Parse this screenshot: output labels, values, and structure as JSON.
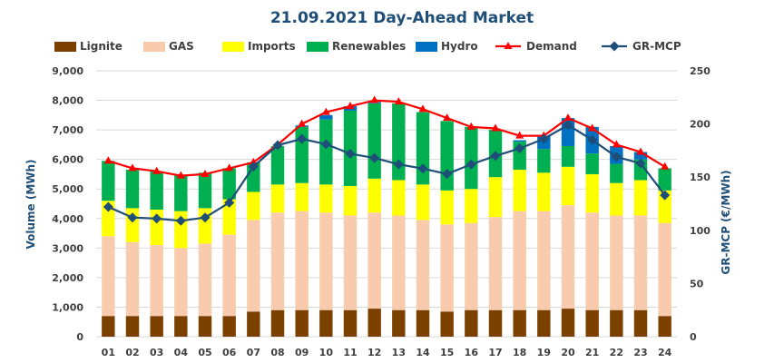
{
  "chart_data": {
    "type": "bar",
    "title": "21.09.2021  Day-Ahead Market",
    "xlabel": "",
    "ylabel": "Volume (MWh)",
    "y2label": "GR-MCP (€/MWh)",
    "ylim": [
      0,
      9000
    ],
    "y2lim": [
      0,
      250
    ],
    "yticks": [
      "0",
      "1,000",
      "2,000",
      "3,000",
      "4,000",
      "5,000",
      "6,000",
      "7,000",
      "8,000",
      "9,000"
    ],
    "y2ticks": [
      "0",
      "50",
      "100",
      "150",
      "200",
      "250"
    ],
    "categories": [
      "01",
      "02",
      "03",
      "04",
      "05",
      "06",
      "07",
      "08",
      "09",
      "10",
      "11",
      "12",
      "13",
      "14",
      "15",
      "16",
      "17",
      "18",
      "19",
      "20",
      "21",
      "22",
      "23",
      "24"
    ],
    "stacked": true,
    "series": [
      {
        "name": "Lignite",
        "kind": "bar",
        "color": "#7b3f00",
        "values": [
          700,
          700,
          700,
          700,
          700,
          700,
          850,
          900,
          900,
          900,
          900,
          950,
          900,
          900,
          850,
          900,
          900,
          900,
          900,
          950,
          900,
          900,
          900,
          700
        ]
      },
      {
        "name": "GAS",
        "kind": "bar",
        "color": "#f8cbad",
        "values": [
          2700,
          2500,
          2400,
          2300,
          2450,
          2750,
          3100,
          3300,
          3350,
          3300,
          3200,
          3250,
          3200,
          3050,
          2950,
          2950,
          3150,
          3350,
          3350,
          3500,
          3300,
          3200,
          3200,
          3150
        ]
      },
      {
        "name": "Imports",
        "kind": "bar",
        "color": "#ffff00",
        "values": [
          1200,
          1150,
          1200,
          1250,
          1200,
          1200,
          950,
          950,
          950,
          950,
          1000,
          1150,
          1200,
          1200,
          1150,
          1150,
          1350,
          1400,
          1300,
          1300,
          1300,
          1100,
          1200,
          1100
        ]
      },
      {
        "name": "Renewables",
        "kind": "bar",
        "color": "#00b050",
        "values": [
          1350,
          1300,
          1300,
          1200,
          1200,
          1050,
          1000,
          1300,
          1900,
          2200,
          2550,
          2550,
          2600,
          2450,
          2350,
          2100,
          1600,
          950,
          800,
          700,
          700,
          650,
          700,
          750
        ]
      },
      {
        "name": "Hydro",
        "kind": "bar",
        "color": "#0070c0",
        "values": [
          0,
          0,
          0,
          0,
          0,
          0,
          0,
          0,
          50,
          150,
          150,
          50,
          0,
          0,
          0,
          0,
          0,
          50,
          450,
          950,
          900,
          600,
          250,
          0
        ]
      },
      {
        "name": "Demand",
        "kind": "line",
        "axis": "left",
        "color": "#ff0000",
        "values": [
          5950,
          5700,
          5600,
          5450,
          5500,
          5700,
          5900,
          6500,
          7200,
          7600,
          7800,
          8000,
          7950,
          7700,
          7400,
          7100,
          7050,
          6800,
          6800,
          7400,
          7050,
          6500,
          6250,
          5750
        ]
      },
      {
        "name": "GR-MCP",
        "kind": "line",
        "axis": "right",
        "color": "#1f4e79",
        "values": [
          122,
          112,
          111,
          109,
          112,
          126,
          160,
          180,
          186,
          181,
          172,
          168,
          162,
          158,
          153,
          162,
          170,
          177,
          186,
          199,
          185,
          169,
          163,
          133
        ]
      }
    ]
  }
}
